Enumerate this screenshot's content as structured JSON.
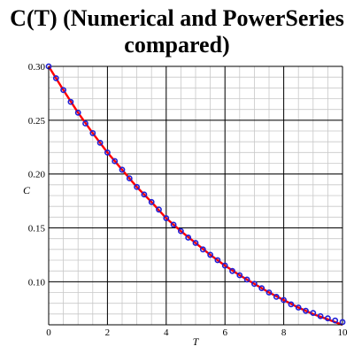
{
  "chart_data": {
    "type": "line",
    "title_lines": [
      "C(T) (Numerical and PowerSeries",
      "compared)"
    ],
    "xlabel": "T",
    "ylabel": "C",
    "xlim": [
      0,
      10
    ],
    "ylim": [
      0.06,
      0.3
    ],
    "x_ticks": [
      0,
      2,
      4,
      6,
      8,
      10
    ],
    "x_tick_labels": [
      "0",
      "2",
      "4",
      "6",
      "8",
      "10"
    ],
    "y_ticks": [
      0.1,
      0.15,
      0.2,
      0.25,
      0.3
    ],
    "y_tick_labels": [
      "0.10",
      "0.15",
      "0.20",
      "0.25",
      "0.30"
    ],
    "grid": true,
    "series": [
      {
        "style": "line",
        "color": "#ff0000",
        "x": [
          0,
          0.5,
          1,
          1.5,
          2,
          2.5,
          3,
          3.5,
          4,
          4.5,
          5,
          5.5,
          6,
          6.5,
          7,
          7.5,
          8,
          8.5,
          9,
          9.5,
          10
        ],
        "y": [
          0.3,
          0.278,
          0.257,
          0.238,
          0.22,
          0.204,
          0.188,
          0.174,
          0.159,
          0.147,
          0.136,
          0.125,
          0.115,
          0.106,
          0.098,
          0.09,
          0.083,
          0.076,
          0.07,
          0.065,
          0.06
        ]
      },
      {
        "style": "points",
        "color": "#1f1fd6",
        "x": [
          0,
          0.25,
          0.5,
          0.75,
          1,
          1.25,
          1.5,
          1.75,
          2,
          2.25,
          2.5,
          2.75,
          3,
          3.25,
          3.5,
          3.75,
          4,
          4.25,
          4.5,
          4.75,
          5,
          5.25,
          5.5,
          5.75,
          6,
          6.25,
          6.5,
          6.75,
          7,
          7.25,
          7.5,
          7.75,
          8,
          8.25,
          8.5,
          8.75,
          9,
          9.25,
          9.5,
          9.75,
          10
        ],
        "y": [
          0.3,
          0.289,
          0.278,
          0.267,
          0.257,
          0.247,
          0.238,
          0.229,
          0.22,
          0.212,
          0.204,
          0.196,
          0.188,
          0.181,
          0.174,
          0.167,
          0.159,
          0.153,
          0.147,
          0.141,
          0.136,
          0.13,
          0.125,
          0.12,
          0.115,
          0.11,
          0.106,
          0.102,
          0.098,
          0.094,
          0.09,
          0.086,
          0.083,
          0.079,
          0.076,
          0.073,
          0.071,
          0.068,
          0.066,
          0.064,
          0.0625
        ]
      }
    ]
  }
}
